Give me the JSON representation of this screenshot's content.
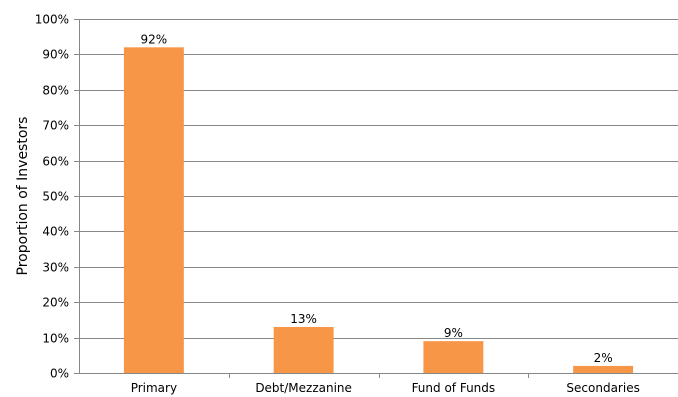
{
  "chart_data": {
    "type": "bar",
    "categories": [
      "Primary",
      "Debt/Mezzanine",
      "Fund of Funds",
      "Secondaries"
    ],
    "values": [
      92,
      13,
      9,
      2
    ],
    "data_labels": [
      "92%",
      "13%",
      "9%",
      "2%"
    ],
    "title": "",
    "xlabel": "",
    "ylabel": "Proportion of Investors",
    "ylim": [
      0,
      100
    ],
    "y_ticks": [
      0,
      10,
      20,
      30,
      40,
      50,
      60,
      70,
      80,
      90,
      100
    ],
    "y_tick_labels": [
      "0%",
      "10%",
      "20%",
      "30%",
      "40%",
      "50%",
      "60%",
      "70%",
      "80%",
      "90%",
      "100%"
    ],
    "grid": true,
    "legend": "none",
    "colors": {
      "bar": "#F79646",
      "gridline": "#888888",
      "axis": "#888888"
    }
  }
}
